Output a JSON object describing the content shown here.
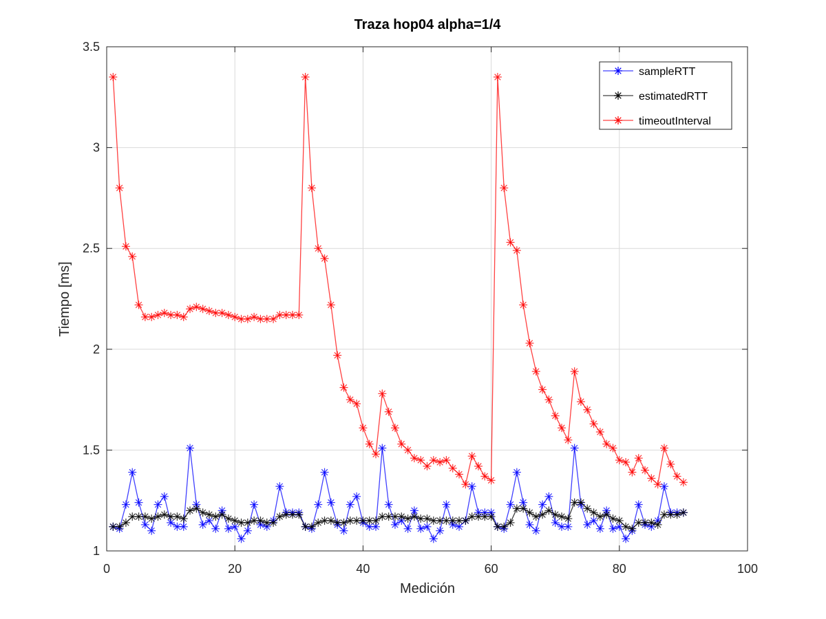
{
  "chart_data": {
    "type": "line",
    "title": "Traza hop04 alpha=1/4",
    "xlabel": "Medición",
    "ylabel": "Tiempo [ms]",
    "xlim": [
      0,
      100
    ],
    "ylim": [
      1,
      3.5
    ],
    "xticks": [
      0,
      20,
      40,
      60,
      80,
      100
    ],
    "yticks": [
      1,
      1.5,
      2,
      2.5,
      3,
      3.5
    ],
    "xtick_labels": [
      "0",
      "20",
      "40",
      "60",
      "80",
      "100"
    ],
    "ytick_labels": [
      "1",
      "1.5",
      "2",
      "2.5",
      "3",
      "3.5"
    ],
    "grid": true,
    "legend_position": "top-right",
    "x": [
      1,
      2,
      3,
      4,
      5,
      6,
      7,
      8,
      9,
      10,
      11,
      12,
      13,
      14,
      15,
      16,
      17,
      18,
      19,
      20,
      21,
      22,
      23,
      24,
      25,
      26,
      27,
      28,
      29,
      30,
      31,
      32,
      33,
      34,
      35,
      36,
      37,
      38,
      39,
      40,
      41,
      42,
      43,
      44,
      45,
      46,
      47,
      48,
      49,
      50,
      51,
      52,
      53,
      54,
      55,
      56,
      57,
      58,
      59,
      60,
      61,
      62,
      63,
      64,
      65,
      66,
      67,
      68,
      69,
      70,
      71,
      72,
      73,
      74,
      75,
      76,
      77,
      78,
      79,
      80,
      81,
      82,
      83,
      84,
      85,
      86,
      87,
      88,
      89,
      90
    ],
    "series": [
      {
        "name": "sampleRTT",
        "color": "#0000ff",
        "values": [
          1.12,
          1.11,
          1.23,
          1.39,
          1.24,
          1.13,
          1.1,
          1.23,
          1.27,
          1.14,
          1.12,
          1.12,
          1.51,
          1.23,
          1.13,
          1.15,
          1.11,
          1.2,
          1.11,
          1.12,
          1.06,
          1.1,
          1.23,
          1.13,
          1.12,
          1.15,
          1.32,
          1.19,
          1.19,
          1.19,
          1.12,
          1.11,
          1.23,
          1.39,
          1.24,
          1.13,
          1.1,
          1.23,
          1.27,
          1.14,
          1.12,
          1.12,
          1.51,
          1.23,
          1.13,
          1.15,
          1.11,
          1.2,
          1.11,
          1.12,
          1.06,
          1.1,
          1.23,
          1.13,
          1.12,
          1.15,
          1.32,
          1.19,
          1.19,
          1.19,
          1.12,
          1.11,
          1.23,
          1.39,
          1.24,
          1.13,
          1.1,
          1.23,
          1.27,
          1.14,
          1.12,
          1.12,
          1.51,
          1.23,
          1.13,
          1.15,
          1.11,
          1.2,
          1.11,
          1.12,
          1.06,
          1.1,
          1.23,
          1.13,
          1.12,
          1.15,
          1.32,
          1.19,
          1.19,
          1.19
        ]
      },
      {
        "name": "estimatedRTT",
        "color": "#000000",
        "values": [
          1.12,
          1.12,
          1.14,
          1.17,
          1.17,
          1.17,
          1.16,
          1.17,
          1.18,
          1.17,
          1.17,
          1.16,
          1.2,
          1.21,
          1.19,
          1.18,
          1.17,
          1.18,
          1.16,
          1.15,
          1.14,
          1.14,
          1.15,
          1.15,
          1.14,
          1.14,
          1.17,
          1.18,
          1.18,
          1.18,
          1.12,
          1.12,
          1.14,
          1.15,
          1.15,
          1.14,
          1.14,
          1.15,
          1.15,
          1.15,
          1.15,
          1.15,
          1.17,
          1.17,
          1.17,
          1.17,
          1.16,
          1.17,
          1.16,
          1.16,
          1.15,
          1.15,
          1.15,
          1.15,
          1.15,
          1.15,
          1.17,
          1.17,
          1.17,
          1.17,
          1.12,
          1.12,
          1.14,
          1.21,
          1.21,
          1.19,
          1.17,
          1.18,
          1.2,
          1.18,
          1.17,
          1.16,
          1.24,
          1.24,
          1.21,
          1.19,
          1.17,
          1.18,
          1.16,
          1.15,
          1.12,
          1.11,
          1.14,
          1.14,
          1.14,
          1.13,
          1.18,
          1.18,
          1.18,
          1.19
        ]
      },
      {
        "name": "timeoutInterval",
        "color": "#ff0000",
        "values": [
          3.35,
          2.8,
          2.51,
          2.46,
          2.22,
          2.16,
          2.16,
          2.17,
          2.18,
          2.17,
          2.17,
          2.16,
          2.2,
          2.21,
          2.2,
          2.19,
          2.18,
          2.18,
          2.17,
          2.16,
          2.15,
          2.15,
          2.16,
          2.15,
          2.15,
          2.15,
          2.17,
          2.17,
          2.17,
          2.17,
          3.35,
          2.8,
          2.5,
          2.45,
          2.22,
          1.97,
          1.81,
          1.75,
          1.73,
          1.61,
          1.53,
          1.48,
          1.78,
          1.69,
          1.61,
          1.53,
          1.5,
          1.46,
          1.45,
          1.42,
          1.45,
          1.44,
          1.45,
          1.41,
          1.38,
          1.33,
          1.47,
          1.42,
          1.37,
          1.35,
          3.35,
          2.8,
          2.53,
          2.49,
          2.22,
          2.03,
          1.89,
          1.8,
          1.75,
          1.67,
          1.61,
          1.55,
          1.89,
          1.74,
          1.7,
          1.63,
          1.59,
          1.53,
          1.51,
          1.45,
          1.44,
          1.39,
          1.46,
          1.4,
          1.36,
          1.33,
          1.51,
          1.43,
          1.37,
          1.34
        ]
      }
    ]
  }
}
